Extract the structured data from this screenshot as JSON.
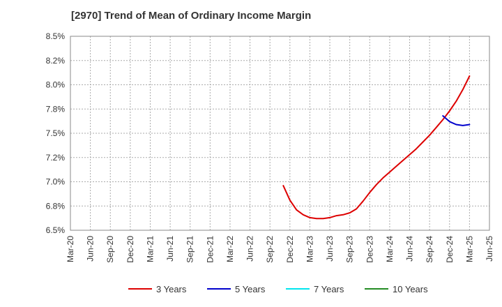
{
  "chart_data": {
    "type": "line",
    "title": "[2970]  Trend of Mean of Ordinary Income Margin",
    "xlabel": "",
    "ylabel": "",
    "y_unit": "%",
    "ylim": [
      6.5,
      8.5
    ],
    "y_ticks": [
      "6.5%",
      "6.8%",
      "7.0%",
      "7.2%",
      "7.5%",
      "7.8%",
      "8.0%",
      "8.2%",
      "8.5%"
    ],
    "y_tick_values": [
      6.5,
      6.75,
      7.0,
      7.25,
      7.5,
      7.75,
      8.0,
      8.25,
      8.5
    ],
    "x_ticks": [
      "Mar-20",
      "Jun-20",
      "Sep-20",
      "Dec-20",
      "Mar-21",
      "Jun-21",
      "Sep-21",
      "Dec-21",
      "Mar-22",
      "Jun-22",
      "Sep-22",
      "Dec-22",
      "Mar-23",
      "Jun-23",
      "Sep-23",
      "Dec-23",
      "Mar-24",
      "Jun-24",
      "Sep-24",
      "Dec-24",
      "Mar-25",
      "Jun-25"
    ],
    "grid": true,
    "legend_position": "bottom",
    "series": [
      {
        "name": "3 Years",
        "color": "#dd0000",
        "points": [
          [
            "Nov-22",
            6.96
          ],
          [
            "Dec-22",
            6.81
          ],
          [
            "Jan-23",
            6.71
          ],
          [
            "Feb-23",
            6.66
          ],
          [
            "Mar-23",
            6.63
          ],
          [
            "Apr-23",
            6.62
          ],
          [
            "May-23",
            6.62
          ],
          [
            "Jun-23",
            6.63
          ],
          [
            "Jul-23",
            6.65
          ],
          [
            "Aug-23",
            6.66
          ],
          [
            "Sep-23",
            6.68
          ],
          [
            "Oct-23",
            6.72
          ],
          [
            "Nov-23",
            6.8
          ],
          [
            "Dec-23",
            6.89
          ],
          [
            "Jan-24",
            6.97
          ],
          [
            "Feb-24",
            7.04
          ],
          [
            "Mar-24",
            7.1
          ],
          [
            "Apr-24",
            7.16
          ],
          [
            "May-24",
            7.22
          ],
          [
            "Jun-24",
            7.28
          ],
          [
            "Jul-24",
            7.34
          ],
          [
            "Aug-24",
            7.41
          ],
          [
            "Sep-24",
            7.48
          ],
          [
            "Oct-24",
            7.56
          ],
          [
            "Nov-24",
            7.64
          ],
          [
            "Dec-24",
            7.73
          ],
          [
            "Jan-25",
            7.83
          ],
          [
            "Feb-25",
            7.95
          ],
          [
            "Mar-25",
            8.09
          ]
        ]
      },
      {
        "name": "5 Years",
        "color": "#0000cc",
        "points": [
          [
            "Nov-24",
            7.68
          ],
          [
            "Dec-24",
            7.62
          ],
          [
            "Jan-25",
            7.59
          ],
          [
            "Feb-25",
            7.58
          ],
          [
            "Mar-25",
            7.59
          ]
        ]
      },
      {
        "name": "7 Years",
        "color": "#00e5ee",
        "points": []
      },
      {
        "name": "10 Years",
        "color": "#228b22",
        "points": []
      }
    ]
  }
}
